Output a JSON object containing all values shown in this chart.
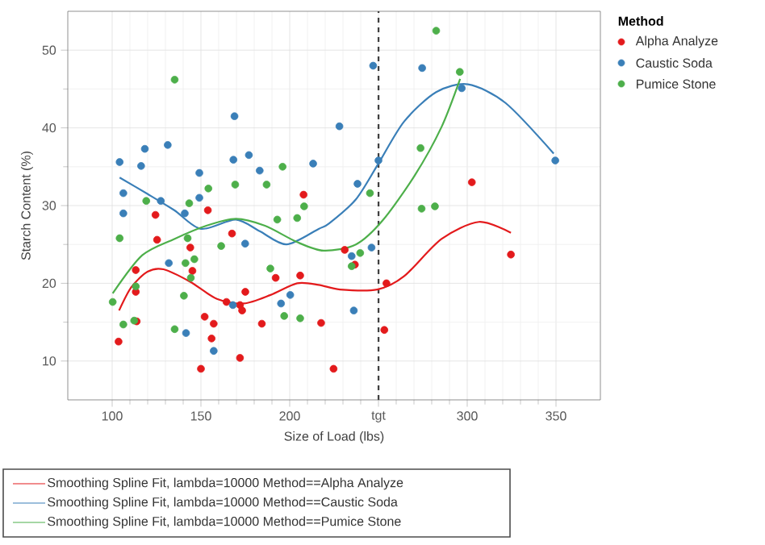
{
  "chart_data": {
    "type": "scatter",
    "xlabel": "Size of Load (lbs)",
    "ylabel": "Starch Content (%)",
    "legend_title": "Method",
    "xlim": [
      75,
      375
    ],
    "ylim": [
      5,
      55
    ],
    "xticks": [
      100,
      150,
      200,
      {
        "value": 250,
        "label": "tgt"
      },
      300,
      350
    ],
    "yticks": [
      10,
      20,
      30,
      40,
      50
    ],
    "grid": true,
    "legend": "right",
    "marker": "circle",
    "ref_lines": [
      {
        "axis": "x",
        "value": 250,
        "color": "#404040",
        "line_style": "dashed"
      }
    ],
    "series": [
      {
        "name": "Alpha Analyze",
        "color": "#e31a1c",
        "x": [
          103.6,
          113.3,
          113.3,
          113.8,
          124.4,
          125.3,
          144.0,
          145.2,
          153.9,
          152.1,
          157.2,
          156.0,
          150.0,
          167.5,
          164.4,
          172.0,
          173.2,
          175.0,
          172.0,
          184.3,
          192.1,
          205.9,
          207.8,
          217.7,
          224.7,
          231.0,
          236.7,
          253.3,
          254.5,
          302.6,
          324.6
        ],
        "values": [
          12.5,
          21.7,
          18.9,
          15.1,
          28.8,
          25.6,
          24.6,
          21.6,
          29.4,
          15.7,
          14.8,
          12.9,
          9.0,
          26.4,
          17.6,
          17.2,
          16.5,
          18.9,
          10.4,
          14.8,
          20.7,
          21.0,
          31.4,
          14.9,
          9.0,
          24.3,
          22.4,
          14.0,
          20.0,
          33.0,
          23.7
        ]
      },
      {
        "name": "Caustic Soda",
        "color": "#3a7fb8",
        "x": [
          104.2,
          106.3,
          106.3,
          116.3,
          118.4,
          131.3,
          127.4,
          131.9,
          140.9,
          141.6,
          149.1,
          149.1,
          157.2,
          168.9,
          168.3,
          177.0,
          174.9,
          183.1,
          168.0,
          195.1,
          200.3,
          213.2,
          228.0,
          247.0,
          274.6,
          238.2,
          234.9,
          246.1,
          236.1,
          250.0,
          296.9,
          349.6
        ],
        "values": [
          35.6,
          31.6,
          29.0,
          35.1,
          37.3,
          37.8,
          30.6,
          22.6,
          29.0,
          13.6,
          34.2,
          31.0,
          11.3,
          41.5,
          35.9,
          36.5,
          25.1,
          34.5,
          17.2,
          17.4,
          18.5,
          35.4,
          40.2,
          48.0,
          47.7,
          32.8,
          23.5,
          24.6,
          16.5,
          35.8,
          45.1,
          35.8
        ]
      },
      {
        "name": "Pumice Stone",
        "color": "#4daf4a",
        "x": [
          100.3,
          106.3,
          104.2,
          113.3,
          112.4,
          119.2,
          135.2,
          135.2,
          140.4,
          141.3,
          142.5,
          143.4,
          144.3,
          146.3,
          154.2,
          161.4,
          169.3,
          187.0,
          189.1,
          193.0,
          196.0,
          196.9,
          204.2,
          205.9,
          208.1,
          234.9,
          239.7,
          245.2,
          274.3,
          281.8,
          273.7,
          282.5,
          295.8
        ],
        "values": [
          17.6,
          14.7,
          25.8,
          19.6,
          15.2,
          30.6,
          46.2,
          14.1,
          18.4,
          22.6,
          25.8,
          30.3,
          20.7,
          23.1,
          32.2,
          24.8,
          32.7,
          32.7,
          21.9,
          28.2,
          35.0,
          15.8,
          28.4,
          15.5,
          29.9,
          22.2,
          23.9,
          31.6,
          29.6,
          29.9,
          37.4,
          52.5,
          47.2
        ]
      },
      {
        "name": "Smoothing Spline Fit, lambda=10000 Method==Alpha Analyze",
        "type": "line",
        "marker": "none",
        "color": "#e31a1c",
        "x": [
          103.9,
          110.8,
          119.9,
          128.9,
          143.9,
          159.0,
          174.1,
          189.2,
          204.2,
          216.3,
          228.3,
          249.3,
          264.4,
          285.5,
          306.6,
          324.6
        ],
        "values": [
          16.5,
          19.5,
          21.5,
          21.8,
          20.2,
          18.0,
          17.4,
          18.5,
          20.0,
          19.8,
          19.2,
          19.2,
          20.9,
          25.7,
          27.9,
          26.5
        ]
      },
      {
        "name": "Smoothing Spline Fit, lambda=10000 Method==Caustic Soda",
        "type": "line",
        "marker": "none",
        "color": "#3a7fb8",
        "x": [
          104.2,
          119.9,
          135.0,
          150.0,
          169.6,
          183.1,
          198.2,
          216.3,
          222.2,
          237.3,
          249.7,
          264.4,
          282.5,
          300.5,
          321.6,
          348.7
        ],
        "values": [
          33.6,
          31.5,
          29.4,
          27.0,
          28.2,
          26.7,
          25.0,
          27.0,
          27.7,
          30.8,
          35.3,
          40.8,
          44.6,
          45.6,
          43.2,
          36.7
        ]
      },
      {
        "name": "Smoothing Spline Fit, lambda=10000 Method==Pumice Stone",
        "type": "line",
        "marker": "none",
        "color": "#4daf4a",
        "x": [
          100.3,
          116.9,
          135.0,
          153.0,
          169.6,
          186.1,
          204.2,
          219.2,
          237.3,
          252.4,
          270.5,
          285.5,
          296.0
        ],
        "values": [
          18.7,
          23.6,
          25.7,
          27.4,
          28.3,
          27.4,
          25.3,
          24.2,
          25.0,
          28.1,
          33.9,
          40.1,
          46.3
        ]
      }
    ]
  }
}
